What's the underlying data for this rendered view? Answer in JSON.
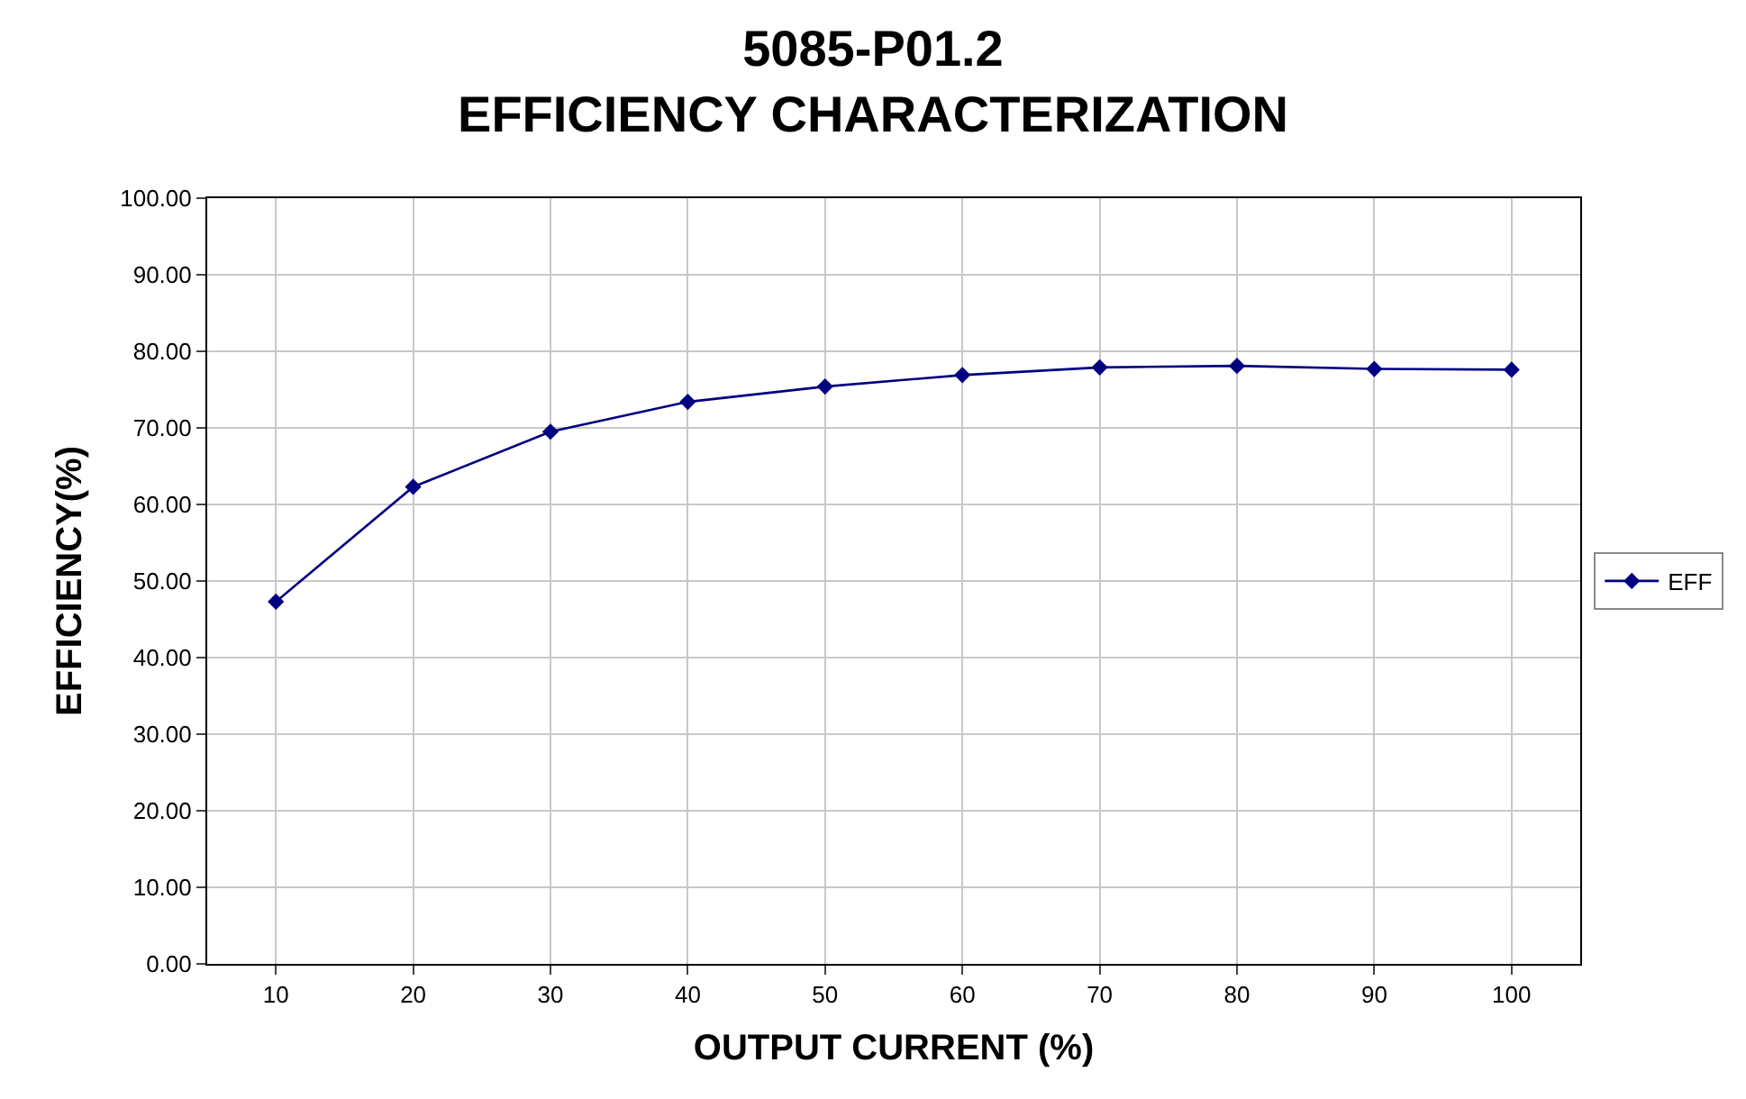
{
  "chart_data": {
    "type": "line",
    "title": "5085-P01.2\nEFFICIENCY CHARACTERIZATION",
    "xlabel": "OUTPUT CURRENT (%)",
    "ylabel": "EFFICIENCY(%)",
    "categories": [
      "10",
      "20",
      "30",
      "40",
      "50",
      "60",
      "70",
      "80",
      "90",
      "100"
    ],
    "series": [
      {
        "name": "EFF",
        "color": "#000080",
        "values": [
          47.3,
          62.3,
          69.5,
          73.4,
          75.4,
          76.9,
          77.9,
          78.1,
          77.7,
          77.6
        ]
      }
    ],
    "ylim": [
      0,
      100
    ],
    "yticks": [
      {
        "value": 0,
        "label": "0.00"
      },
      {
        "value": 10,
        "label": "10.00"
      },
      {
        "value": 20,
        "label": "20.00"
      },
      {
        "value": 30,
        "label": "30.00"
      },
      {
        "value": 40,
        "label": "40.00"
      },
      {
        "value": 50,
        "label": "50.00"
      },
      {
        "value": 60,
        "label": "60.00"
      },
      {
        "value": 70,
        "label": "70.00"
      },
      {
        "value": 80,
        "label": "80.00"
      },
      {
        "value": 90,
        "label": "90.00"
      },
      {
        "value": 100,
        "label": "100.00"
      }
    ],
    "grid": true,
    "legend": "right",
    "marker": "diamond",
    "line_style": "solid"
  }
}
